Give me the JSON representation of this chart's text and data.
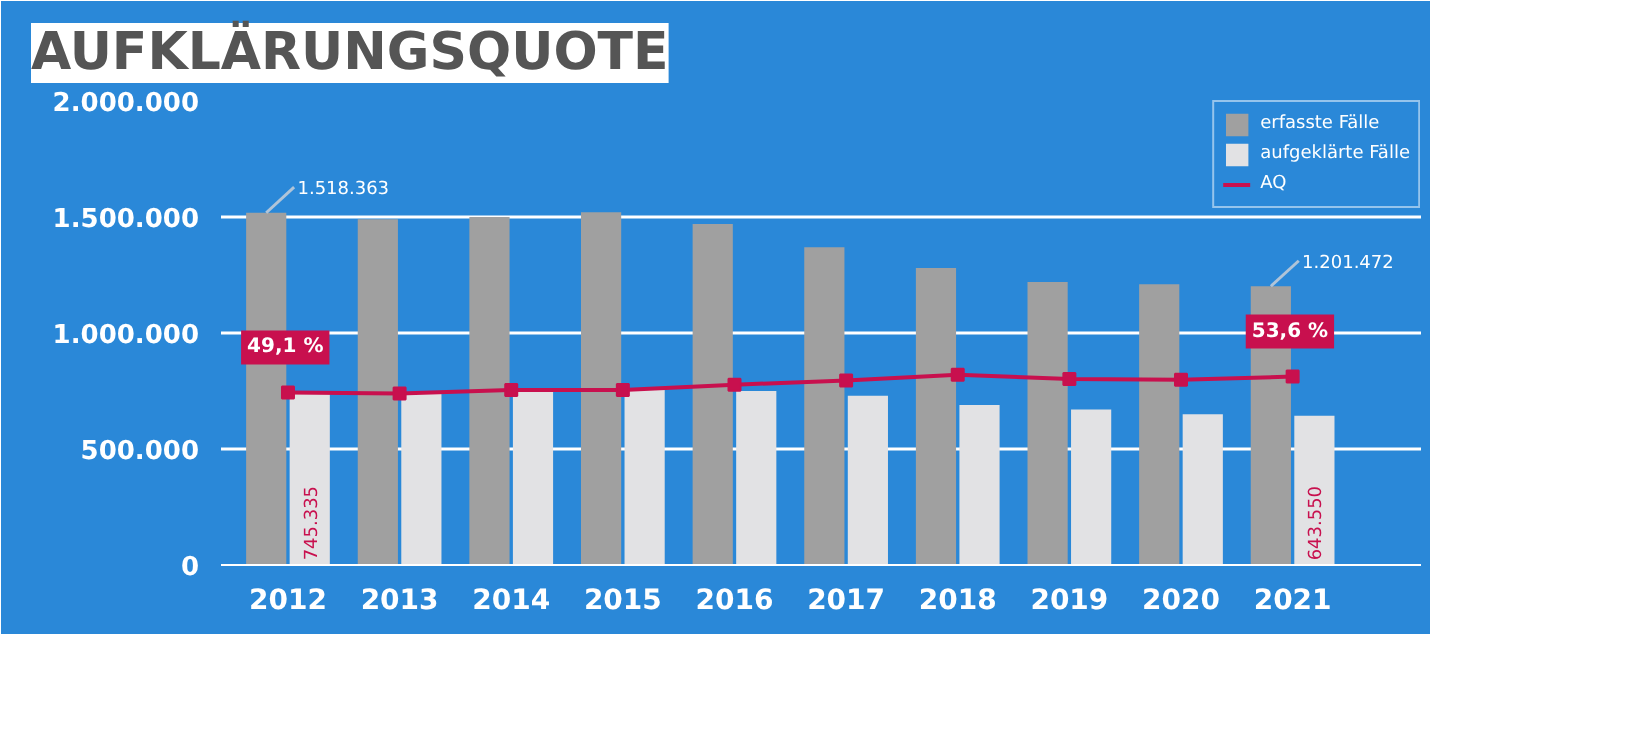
{
  "chart_data": {
    "type": "bar",
    "title": "AUFKLÄRUNGSQUOTE",
    "categories": [
      "2012",
      "2013",
      "2014",
      "2015",
      "2016",
      "2017",
      "2018",
      "2019",
      "2020",
      "2021"
    ],
    "series": [
      {
        "name": "erfasste Fälle",
        "color": "#a0a0a0",
        "values": [
          1518363,
          1490000,
          1500000,
          1520000,
          1470000,
          1370000,
          1280000,
          1220000,
          1210000,
          1201472
        ],
        "value_labels": [
          "1.518.363",
          null,
          null,
          null,
          null,
          null,
          null,
          null,
          null,
          "1.201.472"
        ]
      },
      {
        "name": "aufgeklärte Fälle",
        "color": "#e2e2e4",
        "values": [
          745335,
          740000,
          750000,
          760000,
          750000,
          730000,
          690000,
          670000,
          650000,
          643550
        ],
        "value_labels": [
          "745.335",
          null,
          null,
          null,
          null,
          null,
          null,
          null,
          null,
          "643.550"
        ]
      },
      {
        "name": "AQ",
        "type": "line",
        "axis": "y2",
        "color": "#c8104e",
        "values": [
          49.1,
          48.8,
          49.8,
          49.8,
          51.3,
          52.5,
          54.1,
          52.9,
          52.7,
          53.6
        ],
        "value_labels": [
          "49,1 %",
          null,
          null,
          null,
          null,
          null,
          null,
          null,
          null,
          "53,6 %"
        ]
      }
    ],
    "ylim": [
      0,
      2000000
    ],
    "yticks": [
      {
        "value": 0,
        "label": "0"
      },
      {
        "value": 500000,
        "label": "500.000"
      },
      {
        "value": 1000000,
        "label": "1.000.000"
      },
      {
        "value": 1500000,
        "label": "1.500.000"
      },
      {
        "value": 2000000,
        "label": "2.000.000"
      }
    ],
    "y2lim": [
      0,
      132
    ],
    "grid": "y",
    "legend": "top right",
    "marker": "square",
    "line_style": "solid"
  }
}
